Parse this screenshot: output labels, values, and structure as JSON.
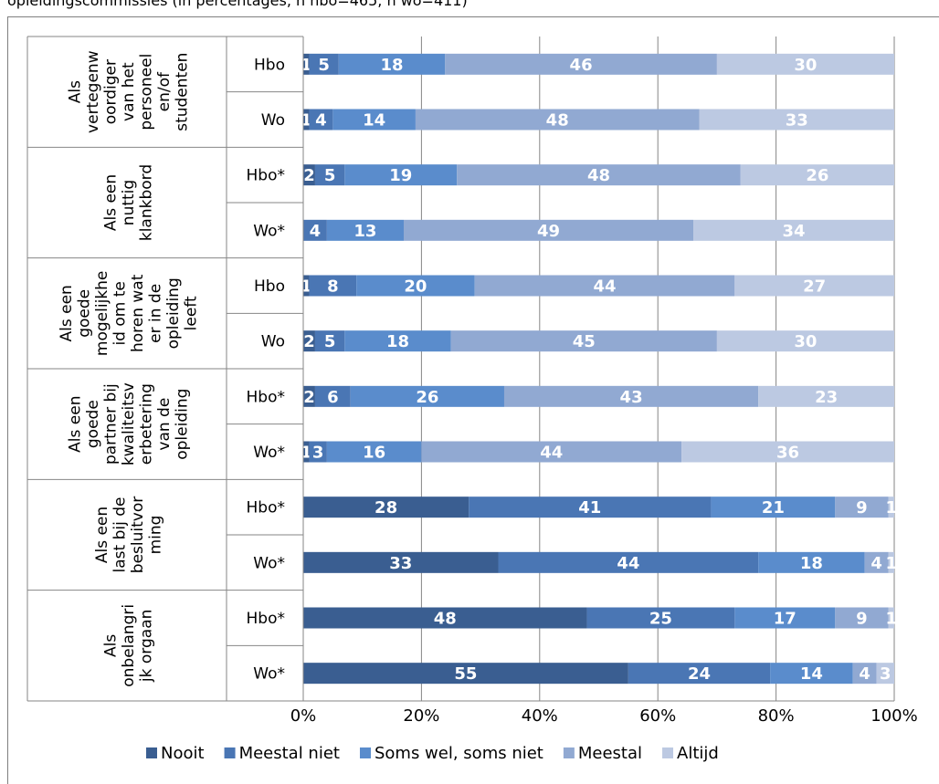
{
  "caption": "opleidingscommissies (in percentages, n hbo=465, n wo=411)",
  "colors": {
    "Nooit": "#3a5e91",
    "Meestal niet": "#4a76b4",
    "Soms wel, soms niet": "#5a8ccc",
    "Meestal": "#91a9d2",
    "Altijd": "#bcc9e2"
  },
  "chart_data": {
    "type": "bar",
    "orientation": "horizontal",
    "stacked": true,
    "xlim": [
      0,
      100
    ],
    "x_ticks": [
      "0%",
      "20%",
      "40%",
      "60%",
      "80%",
      "100%"
    ],
    "legend_position": "bottom",
    "series_names": [
      "Nooit",
      "Meestal niet",
      "Soms wel, soms niet",
      "Meestal",
      "Altijd"
    ],
    "groups": [
      {
        "label_lines": [
          "Als",
          "vertegenw",
          "oordiger",
          "van het",
          "personeel",
          "en/of",
          "studenten"
        ],
        "rows": [
          {
            "label": "Hbo",
            "values": [
              1,
              5,
              18,
              46,
              30
            ]
          },
          {
            "label": "Wo",
            "values": [
              1,
              4,
              14,
              48,
              33
            ]
          }
        ]
      },
      {
        "label_lines": [
          "Als een",
          "nuttig",
          "klankbord"
        ],
        "rows": [
          {
            "label": "Hbo*",
            "values": [
              2,
              5,
              19,
              48,
              26
            ]
          },
          {
            "label": "Wo*",
            "values": [
              0,
              4,
              13,
              49,
              34
            ]
          }
        ]
      },
      {
        "label_lines": [
          "Als een",
          "goede",
          "mogelijkhe",
          "id om te",
          "horen wat",
          "er in de",
          "opleiding",
          "leeft"
        ],
        "rows": [
          {
            "label": "Hbo",
            "values": [
              1,
              8,
              20,
              44,
              27
            ]
          },
          {
            "label": "Wo",
            "values": [
              2,
              5,
              18,
              45,
              30
            ]
          }
        ]
      },
      {
        "label_lines": [
          "Als een",
          "goede",
          "partner bij",
          "kwaliteitsv",
          "erbetering",
          "van de",
          "opleiding"
        ],
        "rows": [
          {
            "label": "Hbo*",
            "values": [
              2,
              6,
              26,
              43,
              23
            ]
          },
          {
            "label": "Wo*",
            "values": [
              1,
              3,
              16,
              44,
              36
            ]
          }
        ]
      },
      {
        "label_lines": [
          "Als een",
          "last bij de",
          "besluitvor",
          "ming"
        ],
        "rows": [
          {
            "label": "Hbo*",
            "values": [
              28,
              41,
              21,
              9,
              1
            ]
          },
          {
            "label": "Wo*",
            "values": [
              33,
              44,
              18,
              4,
              1
            ]
          }
        ]
      },
      {
        "label_lines": [
          "Als",
          "onbelangri",
          "jk orgaan"
        ],
        "rows": [
          {
            "label": "Hbo*",
            "values": [
              48,
              25,
              17,
              9,
              1
            ]
          },
          {
            "label": "Wo*",
            "values": [
              55,
              24,
              14,
              4,
              3
            ]
          }
        ]
      }
    ]
  }
}
